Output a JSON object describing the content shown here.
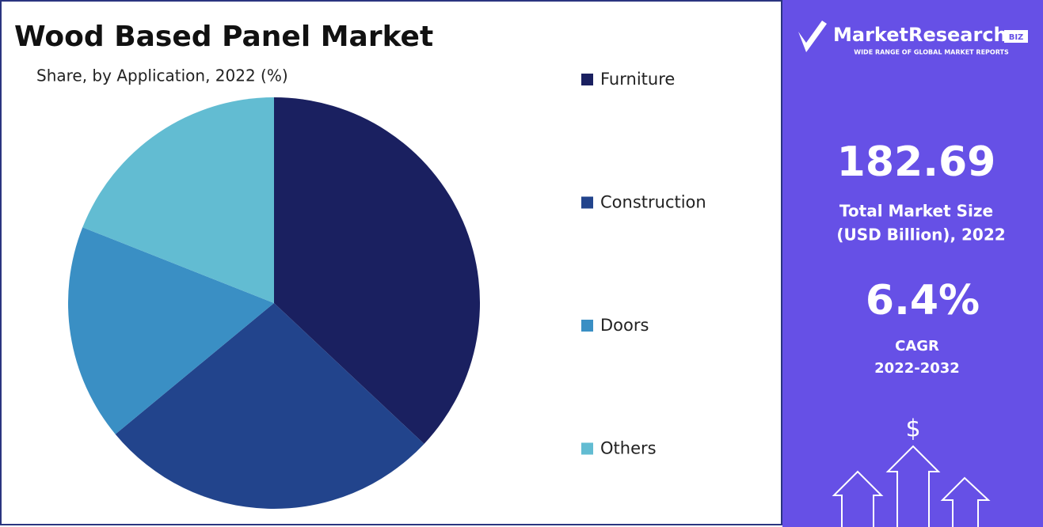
{
  "chart_data": {
    "type": "pie",
    "title": "Wood Based Panel Market",
    "subtitle": "Share, by Application, 2022 (%)",
    "categories": [
      "Furniture",
      "Construction",
      "Doors",
      "Others"
    ],
    "values": [
      37,
      27,
      17,
      19
    ],
    "colors": [
      "#1a2060",
      "#22448c",
      "#3a8fc4",
      "#62bcd2"
    ],
    "legend": "right"
  },
  "sidebar": {
    "logo": "MarketResearch",
    "logo_badge": "BIZ",
    "tagline": "WIDE RANGE OF GLOBAL MARKET REPORTS",
    "market_size": "182.69",
    "market_size_label": [
      "Total Market Size",
      "(USD Billion), 2022"
    ],
    "cagr": "6.4%",
    "cagr_label": [
      "CAGR",
      "2022-2032"
    ],
    "icon": "$"
  }
}
